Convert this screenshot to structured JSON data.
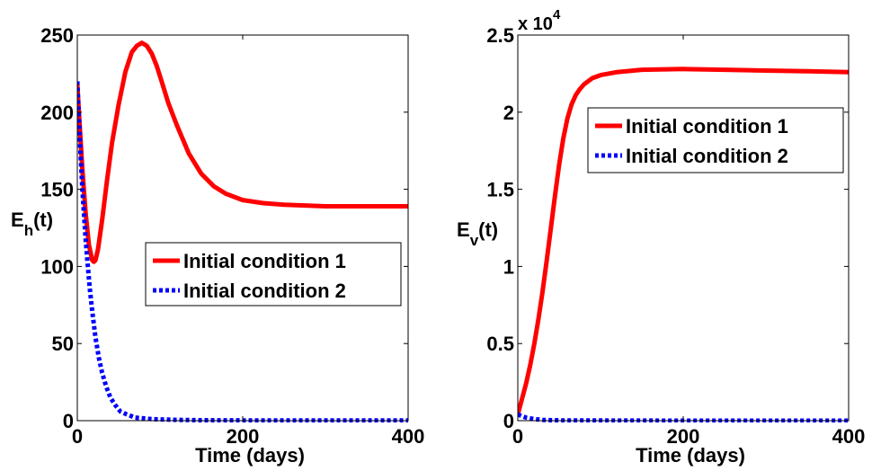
{
  "chart_data": [
    {
      "type": "line",
      "xlabel": "Time (days)",
      "ylabel_main": "E",
      "ylabel_sub": "h",
      "ylabel_tail": "(t)",
      "xlim": [
        0,
        400
      ],
      "ylim": [
        0,
        250
      ],
      "xticks": [
        0,
        200,
        400
      ],
      "xtick_labels": [
        "0",
        "200",
        "400"
      ],
      "yticks": [
        0,
        50,
        100,
        150,
        200,
        250
      ],
      "ytick_labels": [
        "0",
        "50",
        "100",
        "150",
        "200",
        "250"
      ],
      "grid": false,
      "legend": {
        "placement": "center-right"
      },
      "series": [
        {
          "name": "Initial condition 1",
          "color": "#ff0000",
          "style": "solid",
          "x": [
            0,
            3,
            6,
            10,
            14,
            18,
            20,
            22,
            25,
            30,
            36,
            42,
            50,
            58,
            66,
            72,
            78,
            84,
            90,
            96,
            102,
            110,
            120,
            135,
            150,
            165,
            180,
            200,
            225,
            250,
            300,
            350,
            400
          ],
          "y": [
            218,
            190,
            164,
            135,
            114,
            104,
            103,
            104,
            111,
            130,
            156,
            180,
            205,
            226,
            239,
            243,
            245,
            243,
            238,
            230,
            220,
            206,
            192,
            173,
            160,
            152,
            147,
            143,
            141,
            140,
            139,
            139,
            139
          ]
        },
        {
          "name": "Initial condition 2",
          "color": "#0000ff",
          "style": "dotted",
          "x": [
            0,
            2,
            4,
            6,
            8,
            10,
            12,
            15,
            18,
            22,
            26,
            30,
            35,
            40,
            46,
            52,
            60,
            70,
            80,
            90,
            100,
            120,
            150,
            200,
            250,
            300,
            350,
            400
          ],
          "y": [
            220,
            195,
            172,
            151,
            134,
            118,
            105,
            86,
            71,
            54,
            41,
            31,
            22,
            15,
            10,
            6,
            4,
            2,
            1.5,
            1,
            0.8,
            0.5,
            0.3,
            0.2,
            0.1,
            0.1,
            0.1,
            0.1
          ]
        }
      ]
    },
    {
      "type": "line",
      "xlabel": "Time (days)",
      "ylabel_main": "E",
      "ylabel_sub": "v",
      "ylabel_tail": "(t)",
      "exponent_label": "x 10",
      "exponent_power": "4",
      "xlim": [
        0,
        400
      ],
      "ylim": [
        0,
        2.5
      ],
      "xticks": [
        0,
        200,
        400
      ],
      "xtick_labels": [
        "0",
        "200",
        "400"
      ],
      "yticks": [
        0,
        0.5,
        1,
        1.5,
        2,
        2.5
      ],
      "ytick_labels": [
        "0",
        "0.5",
        "1",
        "1.5",
        "2",
        "2.5"
      ],
      "grid": false,
      "legend": {
        "placement": "top-right"
      },
      "series": [
        {
          "name": "Initial condition 1",
          "color": "#ff0000",
          "style": "solid",
          "x": [
            0,
            5,
            10,
            15,
            20,
            25,
            30,
            35,
            40,
            45,
            50,
            55,
            60,
            65,
            70,
            75,
            80,
            90,
            100,
            120,
            150,
            200,
            250,
            300,
            350,
            400
          ],
          "y": [
            0.04,
            0.14,
            0.24,
            0.36,
            0.5,
            0.66,
            0.84,
            1.04,
            1.25,
            1.46,
            1.66,
            1.83,
            1.96,
            2.05,
            2.11,
            2.15,
            2.18,
            2.22,
            2.24,
            2.26,
            2.275,
            2.28,
            2.275,
            2.27,
            2.265,
            2.26
          ]
        },
        {
          "name": "Initial condition 2",
          "color": "#0000ff",
          "style": "dotted",
          "x": [
            0,
            5,
            10,
            20,
            30,
            50,
            100,
            200,
            300,
            400
          ],
          "y": [
            0.04,
            0.03,
            0.02,
            0.01,
            0.005,
            0.002,
            0.001,
            0,
            0,
            0
          ]
        }
      ]
    }
  ]
}
